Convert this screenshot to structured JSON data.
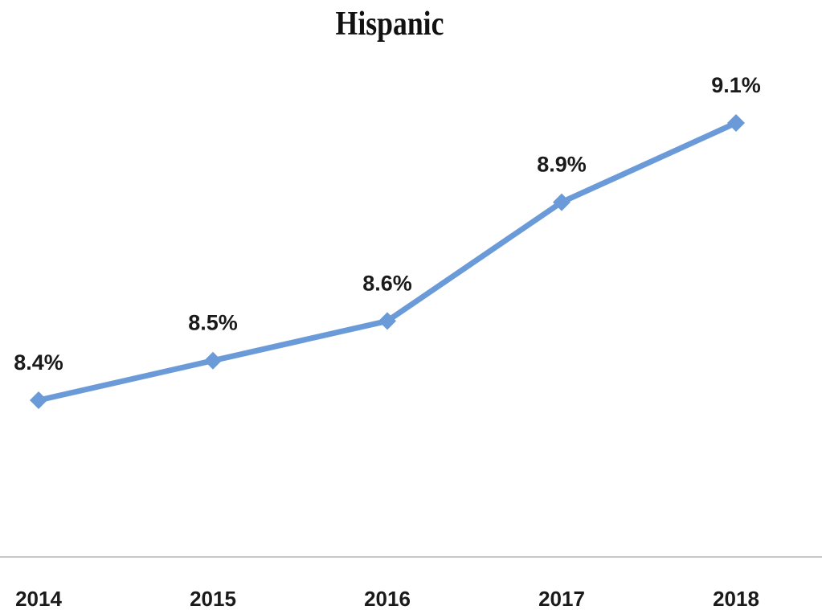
{
  "chart_data": {
    "type": "line",
    "title": "Hispanic",
    "categories": [
      "2014",
      "2015",
      "2016",
      "2017",
      "2018"
    ],
    "series": [
      {
        "values": [
          8.4,
          8.5,
          8.6,
          8.9,
          9.1
        ],
        "labels": [
          "8.4%",
          "8.5%",
          "8.6%",
          "8.9%",
          "9.1%"
        ],
        "color": "#6a9bd8",
        "marker": "diamond"
      }
    ],
    "xlabel": "",
    "ylabel": "",
    "ylim": [
      7.7,
      9.45
    ],
    "grid": false,
    "legend": "none",
    "axis_color": "#c8c8c8"
  }
}
